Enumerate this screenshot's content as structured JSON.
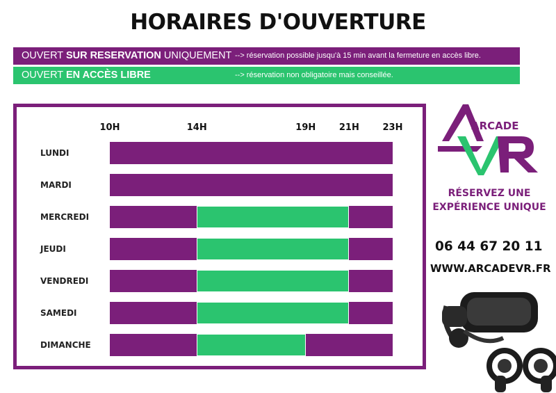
{
  "title": "HORAIRES D'OUVERTURE",
  "colors": {
    "reservation": "#7b1f7a",
    "libre": "#2bc46f"
  },
  "legend": [
    {
      "prefix": "OUVERT ",
      "bold": "SUR RESERVATION",
      "suffix": " UNIQUEMENT",
      "note": "--> réservation possible jusqu'à 15 min avant la fermeture en accès libre.",
      "color": "#7b1f7a"
    },
    {
      "prefix": "OUVERT ",
      "bold": "EN ACCÈS LIBRE",
      "suffix": "",
      "note": "--> réservation non obligatoire mais conseillée.",
      "color": "#2bc46f"
    }
  ],
  "schedule": {
    "hours": [
      "10H",
      "14H",
      "19H",
      "21H",
      "23H"
    ],
    "days": [
      {
        "name": "LUNDI",
        "segments": [
          {
            "from": 10,
            "to": 23,
            "mode": "reservation"
          }
        ]
      },
      {
        "name": "MARDI",
        "segments": [
          {
            "from": 10,
            "to": 23,
            "mode": "reservation"
          }
        ]
      },
      {
        "name": "MERCREDI",
        "segments": [
          {
            "from": 10,
            "to": 14,
            "mode": "reservation"
          },
          {
            "from": 14,
            "to": 21,
            "mode": "libre"
          },
          {
            "from": 21,
            "to": 23,
            "mode": "reservation"
          }
        ]
      },
      {
        "name": "JEUDI",
        "segments": [
          {
            "from": 10,
            "to": 14,
            "mode": "reservation"
          },
          {
            "from": 14,
            "to": 21,
            "mode": "libre"
          },
          {
            "from": 21,
            "to": 23,
            "mode": "reservation"
          }
        ]
      },
      {
        "name": "VENDREDI",
        "segments": [
          {
            "from": 10,
            "to": 14,
            "mode": "reservation"
          },
          {
            "from": 14,
            "to": 21,
            "mode": "libre"
          },
          {
            "from": 21,
            "to": 23,
            "mode": "reservation"
          }
        ]
      },
      {
        "name": "SAMEDI",
        "segments": [
          {
            "from": 10,
            "to": 14,
            "mode": "reservation"
          },
          {
            "from": 14,
            "to": 21,
            "mode": "libre"
          },
          {
            "from": 21,
            "to": 23,
            "mode": "reservation"
          }
        ]
      },
      {
        "name": "DIMANCHE",
        "segments": [
          {
            "from": 10,
            "to": 14,
            "mode": "reservation"
          },
          {
            "from": 14,
            "to": 19,
            "mode": "libre"
          },
          {
            "from": 19,
            "to": 23,
            "mode": "reservation"
          }
        ]
      }
    ]
  },
  "brand": {
    "logo_top": "ARCADE",
    "logo_bottom": "VR",
    "tagline_line1": "RÉSERVEZ UNE",
    "tagline_line2": "EXPÉRIENCE UNIQUE",
    "phone": "06 44 67 20 11",
    "website": "WWW.ARCADEVR.FR"
  },
  "icons": {
    "headset": "vr-headset-icon",
    "controllers": "vr-controllers-icon"
  }
}
